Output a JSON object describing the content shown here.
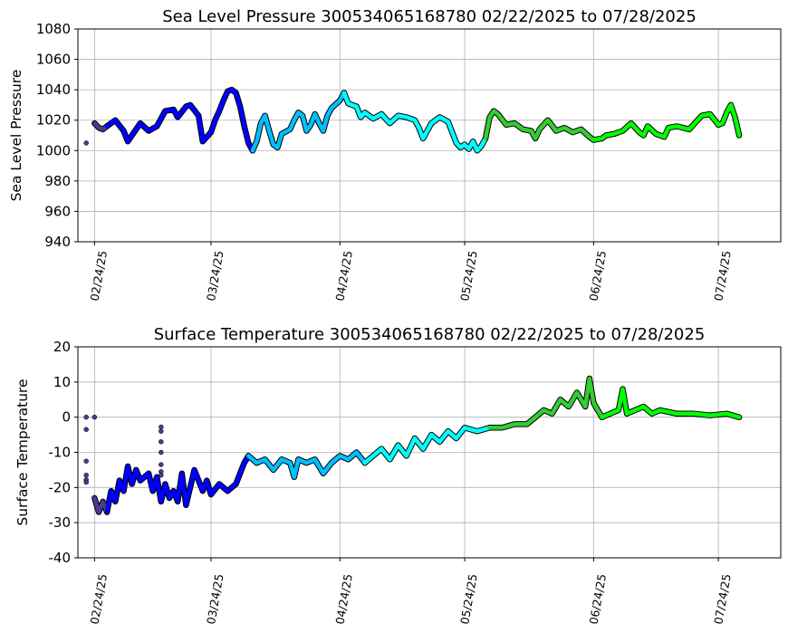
{
  "chart_data": [
    {
      "type": "scatter",
      "title": "Sea Level Pressure 300534065168780  02/22/2025 to 07/28/2025",
      "ylabel": "Sea Level Pressure",
      "xlabel": "",
      "xlim": [
        "2025-02-20",
        "2025-08-08"
      ],
      "ylim": [
        940,
        1080
      ],
      "y_ticks": [
        940,
        960,
        980,
        1000,
        1020,
        1040,
        1060,
        1080
      ],
      "x_ticks": [
        {
          "date": "2025-02-24",
          "label": "02/24/25"
        },
        {
          "date": "2025-03-24",
          "label": "03/24/25"
        },
        {
          "date": "2025-04-24",
          "label": "04/24/25"
        },
        {
          "date": "2025-05-24",
          "label": "05/24/25"
        },
        {
          "date": "2025-06-24",
          "label": "06/24/25"
        },
        {
          "date": "2025-07-24",
          "label": "07/24/25"
        }
      ],
      "grid": true,
      "marker_colors": [
        "#483d8b",
        "#0000ff",
        "#00bfff",
        "#00ffff",
        "#32cd32",
        "#00ff00"
      ],
      "outliers": [
        {
          "x": "2025-02-22",
          "y": 1005
        }
      ],
      "series": [
        {
          "color": "#483d8b",
          "points": [
            [
              "2025-02-24",
              1018
            ],
            [
              "2025-02-25",
              1015
            ],
            [
              "2025-02-26",
              1014
            ],
            [
              "2025-02-27",
              1016
            ]
          ]
        },
        {
          "color": "#0000ff",
          "points": [
            [
              "2025-02-27",
              1016
            ],
            [
              "2025-03-01",
              1020
            ],
            [
              "2025-03-03",
              1013
            ],
            [
              "2025-03-04",
              1006
            ],
            [
              "2025-03-05",
              1010
            ],
            [
              "2025-03-07",
              1018
            ],
            [
              "2025-03-09",
              1013
            ],
            [
              "2025-03-11",
              1016
            ],
            [
              "2025-03-13",
              1026
            ],
            [
              "2025-03-15",
              1027
            ],
            [
              "2025-03-16",
              1022
            ],
            [
              "2025-03-18",
              1029
            ],
            [
              "2025-03-19",
              1030
            ],
            [
              "2025-03-21",
              1023
            ],
            [
              "2025-03-22",
              1006
            ],
            [
              "2025-03-24",
              1012
            ],
            [
              "2025-03-25",
              1020
            ],
            [
              "2025-03-26",
              1026
            ],
            [
              "2025-03-27",
              1033
            ],
            [
              "2025-03-28",
              1039
            ],
            [
              "2025-03-29",
              1040
            ],
            [
              "2025-03-30",
              1038
            ],
            [
              "2025-03-31",
              1029
            ],
            [
              "2025-04-01",
              1016
            ],
            [
              "2025-04-02",
              1005
            ],
            [
              "2025-04-03",
              1000
            ]
          ]
        },
        {
          "color": "#00bfff",
          "points": [
            [
              "2025-04-03",
              1000
            ],
            [
              "2025-04-04",
              1006
            ],
            [
              "2025-04-05",
              1018
            ],
            [
              "2025-04-06",
              1023
            ],
            [
              "2025-04-07",
              1013
            ],
            [
              "2025-04-08",
              1004
            ],
            [
              "2025-04-09",
              1002
            ],
            [
              "2025-04-10",
              1011
            ],
            [
              "2025-04-12",
              1014
            ],
            [
              "2025-04-13",
              1020
            ],
            [
              "2025-04-14",
              1025
            ],
            [
              "2025-04-15",
              1023
            ],
            [
              "2025-04-16",
              1013
            ],
            [
              "2025-04-17",
              1017
            ],
            [
              "2025-04-18",
              1024
            ],
            [
              "2025-04-19",
              1018
            ],
            [
              "2025-04-20",
              1013
            ],
            [
              "2025-04-21",
              1023
            ],
            [
              "2025-04-22",
              1028
            ],
            [
              "2025-04-24",
              1033
            ],
            [
              "2025-04-25",
              1038
            ]
          ]
        },
        {
          "color": "#00ffff",
          "points": [
            [
              "2025-04-25",
              1038
            ],
            [
              "2025-04-26",
              1031
            ],
            [
              "2025-04-28",
              1029
            ],
            [
              "2025-04-29",
              1022
            ],
            [
              "2025-04-30",
              1025
            ],
            [
              "2025-05-02",
              1021
            ],
            [
              "2025-05-04",
              1024
            ],
            [
              "2025-05-06",
              1018
            ],
            [
              "2025-05-08",
              1023
            ],
            [
              "2025-05-10",
              1022
            ],
            [
              "2025-05-12",
              1020
            ],
            [
              "2025-05-13",
              1015
            ],
            [
              "2025-05-14",
              1008
            ],
            [
              "2025-05-15",
              1013
            ],
            [
              "2025-05-16",
              1018
            ],
            [
              "2025-05-18",
              1022
            ],
            [
              "2025-05-20",
              1019
            ],
            [
              "2025-05-21",
              1012
            ],
            [
              "2025-05-22",
              1005
            ],
            [
              "2025-05-23",
              1002
            ],
            [
              "2025-05-24",
              1004
            ],
            [
              "2025-05-25",
              1001
            ],
            [
              "2025-05-26",
              1006
            ],
            [
              "2025-05-27",
              1000
            ],
            [
              "2025-05-28",
              1003
            ],
            [
              "2025-05-29",
              1008
            ]
          ]
        },
        {
          "color": "#32cd32",
          "points": [
            [
              "2025-05-29",
              1008
            ],
            [
              "2025-05-30",
              1022
            ],
            [
              "2025-05-31",
              1026
            ],
            [
              "2025-06-01",
              1024
            ],
            [
              "2025-06-03",
              1017
            ],
            [
              "2025-06-05",
              1018
            ],
            [
              "2025-06-07",
              1014
            ],
            [
              "2025-06-09",
              1013
            ],
            [
              "2025-06-10",
              1008
            ],
            [
              "2025-06-11",
              1014
            ],
            [
              "2025-06-13",
              1020
            ],
            [
              "2025-06-15",
              1013
            ],
            [
              "2025-06-17",
              1015
            ],
            [
              "2025-06-19",
              1012
            ],
            [
              "2025-06-21",
              1014
            ],
            [
              "2025-06-23",
              1009
            ],
            [
              "2025-06-24",
              1007
            ]
          ]
        },
        {
          "color": "#00ff00",
          "points": [
            [
              "2025-06-24",
              1007
            ],
            [
              "2025-06-26",
              1008
            ],
            [
              "2025-06-27",
              1010
            ],
            [
              "2025-06-29",
              1011
            ],
            [
              "2025-07-01",
              1013
            ],
            [
              "2025-07-03",
              1018
            ],
            [
              "2025-07-05",
              1012
            ],
            [
              "2025-07-06",
              1010
            ],
            [
              "2025-07-07",
              1016
            ],
            [
              "2025-07-09",
              1011
            ],
            [
              "2025-07-11",
              1009
            ],
            [
              "2025-07-12",
              1015
            ],
            [
              "2025-07-14",
              1016
            ],
            [
              "2025-07-17",
              1014
            ],
            [
              "2025-07-20",
              1023
            ],
            [
              "2025-07-22",
              1024
            ],
            [
              "2025-07-24",
              1017
            ],
            [
              "2025-07-25",
              1018
            ],
            [
              "2025-07-26",
              1025
            ],
            [
              "2025-07-27",
              1030
            ],
            [
              "2025-07-28",
              1022
            ],
            [
              "2025-07-29",
              1010
            ]
          ]
        }
      ]
    },
    {
      "type": "scatter",
      "title": "Surface Temperature 300534065168780  02/22/2025 to 07/28/2025",
      "ylabel": "Surface Temperature",
      "xlabel": "",
      "xlim": [
        "2025-02-20",
        "2025-08-08"
      ],
      "ylim": [
        -40,
        20
      ],
      "y_ticks": [
        -40,
        -30,
        -20,
        -10,
        0,
        10,
        20
      ],
      "x_ticks": [
        {
          "date": "2025-02-24",
          "label": "02/24/25"
        },
        {
          "date": "2025-03-24",
          "label": "03/24/25"
        },
        {
          "date": "2025-04-24",
          "label": "04/24/25"
        },
        {
          "date": "2025-05-24",
          "label": "05/24/25"
        },
        {
          "date": "2025-06-24",
          "label": "06/24/25"
        },
        {
          "date": "2025-07-24",
          "label": "07/24/25"
        }
      ],
      "grid": true,
      "outliers": [
        {
          "x": "2025-02-22",
          "y": 0
        },
        {
          "x": "2025-02-22",
          "y": -3.5
        },
        {
          "x": "2025-02-22",
          "y": -12.5
        },
        {
          "x": "2025-02-22",
          "y": -16.5
        },
        {
          "x": "2025-02-22",
          "y": -17.8
        },
        {
          "x": "2025-02-22",
          "y": -18.5
        },
        {
          "x": "2025-02-24",
          "y": 0
        },
        {
          "x": "2025-03-12",
          "y": -2.8
        },
        {
          "x": "2025-03-12",
          "y": -4
        },
        {
          "x": "2025-03-12",
          "y": -7
        },
        {
          "x": "2025-03-12",
          "y": -10
        },
        {
          "x": "2025-03-12",
          "y": -13.5
        },
        {
          "x": "2025-03-12",
          "y": -15.5
        },
        {
          "x": "2025-03-12",
          "y": -16.5
        }
      ],
      "series": [
        {
          "color": "#483d8b",
          "points": [
            [
              "2025-02-24",
              -23
            ],
            [
              "2025-02-25",
              -27
            ],
            [
              "2025-02-26",
              -24
            ],
            [
              "2025-02-27",
              -27
            ]
          ]
        },
        {
          "color": "#0000ff",
          "points": [
            [
              "2025-02-27",
              -27
            ],
            [
              "2025-02-28",
              -21
            ],
            [
              "2025-03-01",
              -24
            ],
            [
              "2025-03-02",
              -18
            ],
            [
              "2025-03-03",
              -21
            ],
            [
              "2025-03-04",
              -14
            ],
            [
              "2025-03-05",
              -19
            ],
            [
              "2025-03-06",
              -15
            ],
            [
              "2025-03-07",
              -18
            ],
            [
              "2025-03-09",
              -16
            ],
            [
              "2025-03-10",
              -21
            ],
            [
              "2025-03-11",
              -17
            ],
            [
              "2025-03-12",
              -24
            ],
            [
              "2025-03-13",
              -19
            ],
            [
              "2025-03-14",
              -23
            ],
            [
              "2025-03-15",
              -21
            ],
            [
              "2025-03-16",
              -24
            ],
            [
              "2025-03-17",
              -16
            ],
            [
              "2025-03-18",
              -25
            ],
            [
              "2025-03-19",
              -20
            ],
            [
              "2025-03-20",
              -15
            ],
            [
              "2025-03-21",
              -18
            ],
            [
              "2025-03-22",
              -21
            ],
            [
              "2025-03-23",
              -18
            ],
            [
              "2025-03-24",
              -22
            ],
            [
              "2025-03-26",
              -19
            ],
            [
              "2025-03-28",
              -21
            ],
            [
              "2025-03-30",
              -19
            ],
            [
              "2025-04-01",
              -13
            ],
            [
              "2025-04-02",
              -11
            ]
          ]
        },
        {
          "color": "#00bfff",
          "points": [
            [
              "2025-04-02",
              -11
            ],
            [
              "2025-04-04",
              -13
            ],
            [
              "2025-04-06",
              -12
            ],
            [
              "2025-04-08",
              -15
            ],
            [
              "2025-04-10",
              -12
            ],
            [
              "2025-04-12",
              -13
            ],
            [
              "2025-04-13",
              -17
            ],
            [
              "2025-04-14",
              -12
            ],
            [
              "2025-04-16",
              -13
            ],
            [
              "2025-04-18",
              -12
            ],
            [
              "2025-04-20",
              -16
            ],
            [
              "2025-04-22",
              -13
            ],
            [
              "2025-04-24",
              -11
            ],
            [
              "2025-04-26",
              -12
            ],
            [
              "2025-04-28",
              -10
            ],
            [
              "2025-04-30",
              -13
            ]
          ]
        },
        {
          "color": "#00ffff",
          "points": [
            [
              "2025-04-30",
              -13
            ],
            [
              "2025-05-02",
              -11
            ],
            [
              "2025-05-04",
              -9
            ],
            [
              "2025-05-06",
              -12
            ],
            [
              "2025-05-08",
              -8
            ],
            [
              "2025-05-10",
              -11
            ],
            [
              "2025-05-12",
              -6
            ],
            [
              "2025-05-14",
              -9
            ],
            [
              "2025-05-16",
              -5
            ],
            [
              "2025-05-18",
              -7
            ],
            [
              "2025-05-20",
              -4
            ],
            [
              "2025-05-22",
              -6
            ],
            [
              "2025-05-24",
              -3
            ],
            [
              "2025-05-27",
              -4
            ],
            [
              "2025-05-30",
              -3
            ]
          ]
        },
        {
          "color": "#32cd32",
          "points": [
            [
              "2025-05-30",
              -3
            ],
            [
              "2025-06-02",
              -3
            ],
            [
              "2025-06-05",
              -2
            ],
            [
              "2025-06-08",
              -2
            ],
            [
              "2025-06-10",
              0
            ],
            [
              "2025-06-12",
              2
            ],
            [
              "2025-06-14",
              1
            ],
            [
              "2025-06-16",
              5
            ],
            [
              "2025-06-18",
              3
            ],
            [
              "2025-06-20",
              7
            ],
            [
              "2025-06-22",
              3
            ],
            [
              "2025-06-23",
              11
            ],
            [
              "2025-06-24",
              4
            ],
            [
              "2025-06-26",
              0
            ]
          ]
        },
        {
          "color": "#00ff00",
          "points": [
            [
              "2025-06-26",
              0
            ],
            [
              "2025-06-28",
              1
            ],
            [
              "2025-06-30",
              2
            ],
            [
              "2025-07-01",
              8
            ],
            [
              "2025-07-02",
              1
            ],
            [
              "2025-07-04",
              2
            ],
            [
              "2025-07-06",
              3
            ],
            [
              "2025-07-08",
              1
            ],
            [
              "2025-07-10",
              2
            ],
            [
              "2025-07-14",
              1
            ],
            [
              "2025-07-18",
              1
            ],
            [
              "2025-07-22",
              0.5
            ],
            [
              "2025-07-26",
              1
            ],
            [
              "2025-07-29",
              0
            ]
          ]
        }
      ]
    }
  ]
}
